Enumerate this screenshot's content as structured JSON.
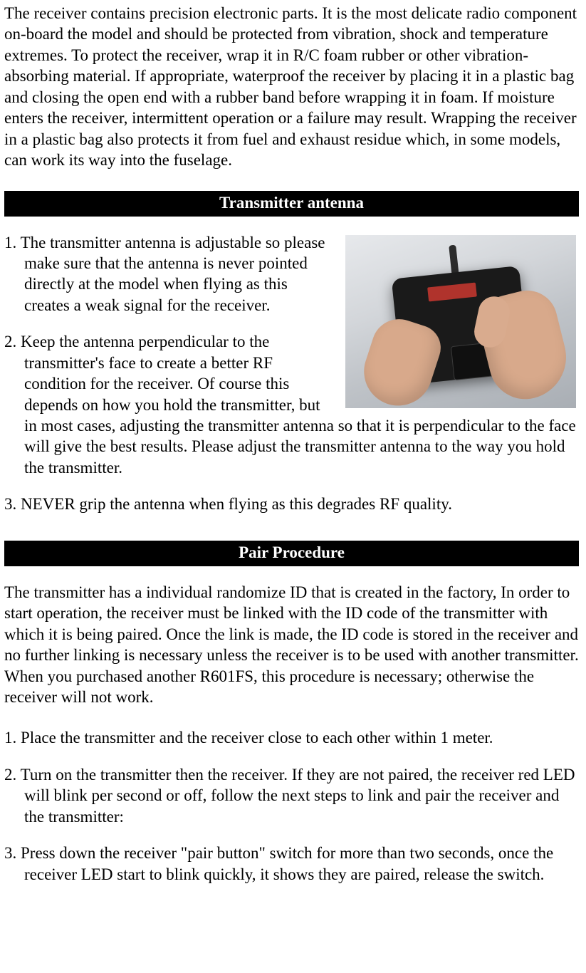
{
  "colors": {
    "page_bg": "#ffffff",
    "text": "#000000",
    "bar_bg": "#000000",
    "bar_text": "#ffffff"
  },
  "typography": {
    "family": "Times New Roman",
    "body_size_pt": 17,
    "heading_size_pt": 17,
    "heading_weight": "bold",
    "line_height": 1.28
  },
  "intro_paragraph": "The receiver contains precision electronic parts. It is the most delicate radio component on-board the model and should be protected from vibration, shock and temperature extremes. To protect the receiver, wrap it in R/C foam rubber or other vibration-absorbing material. If appropriate, waterproof the receiver by placing it in a plastic bag and closing the open end with a rubber band before wrapping it in foam. If moisture enters the receiver, intermittent operation or a failure may result. Wrapping the receiver in a plastic bag also protects it from fuel and exhaust residue which, in some models, can work its way into the fuselage.",
  "section_antenna": {
    "heading": "Transmitter antenna",
    "image_alt": "Hands holding an R/C transmitter with antenna",
    "items": [
      "1. The transmitter antenna is adjustable so please make sure that the antenna is never pointed directly at the model when flying as this creates a weak signal for the receiver.",
      "2. Keep the antenna perpendicular to the transmitter's face to create a better RF condition for the receiver. Of course this depends on how you hold the transmitter, but in most cases, adjusting the transmitter antenna so that it is perpendicular to the face will give the best results. Please adjust the transmitter antenna to the way you hold the transmitter.",
      "3. NEVER grip the antenna when flying as this degrades RF quality."
    ]
  },
  "section_pair": {
    "heading": "Pair Procedure",
    "intro": "The transmitter has a individual randomize ID that is created in the factory, In order to start operation, the receiver must be linked with the ID code of the transmitter with which it is being paired. Once the link is made, the ID code is stored in the receiver and no further linking is necessary unless the receiver is to be used with another transmitter. When you purchased another R601FS, this procedure is necessary; otherwise the receiver will not work.",
    "items": [
      "1. Place the transmitter and the receiver close to each other within 1 meter.",
      "2. Turn on the transmitter then the receiver. If they are not paired, the receiver red LED will blink per second or off, follow the next steps to link and pair the receiver and the transmitter:",
      "3. Press down the receiver \"pair button\" switch for more than two seconds, once the receiver LED start to blink quickly, it shows they are paired, release the switch."
    ]
  }
}
